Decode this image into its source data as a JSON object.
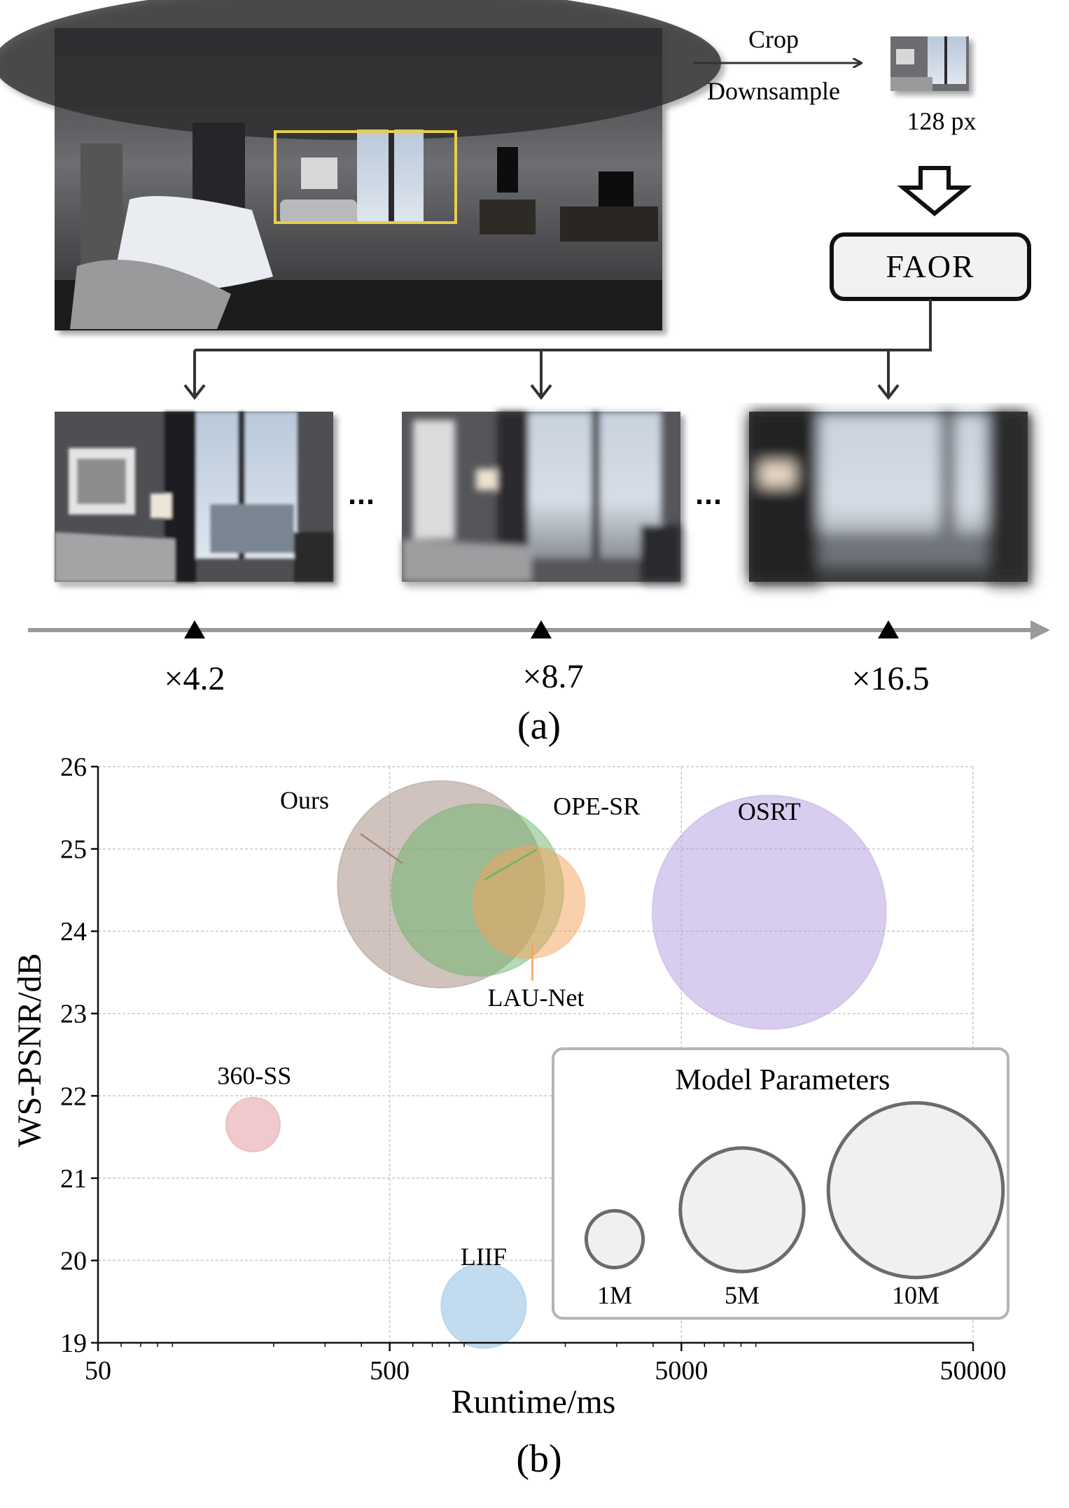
{
  "part_a": {
    "crop_label": "Crop",
    "downsample_label": "Downsample",
    "size_label": "128 px",
    "model_label": "FAOR",
    "ellipsis": "...",
    "scales": [
      "×4.2",
      "×8.7",
      "×16.5"
    ],
    "caption": "(a)"
  },
  "part_b": {
    "caption": "(b)",
    "legend_title": "Model Parameters",
    "legend_items": [
      {
        "label": "1M",
        "params_m": 1
      },
      {
        "label": "5M",
        "params_m": 5
      },
      {
        "label": "10M",
        "params_m": 10
      }
    ]
  },
  "chart_data": {
    "type": "scatter",
    "xlabel": "Runtime/ms",
    "ylabel": "WS-PSNR/dB",
    "xscale": "log",
    "xlim": [
      50,
      50000
    ],
    "ylim": [
      19,
      26
    ],
    "xticks": [
      50,
      500,
      5000,
      50000
    ],
    "xtick_labels": [
      "50",
      "500",
      "5000",
      "50000"
    ],
    "yticks": [
      19,
      20,
      21,
      22,
      23,
      24,
      25,
      26
    ],
    "ytick_labels": [
      "19",
      "20",
      "21",
      "22",
      "23",
      "24",
      "25",
      "26"
    ],
    "grid": true,
    "series": [
      {
        "name": "Ours",
        "x": 750,
        "y": 24.57,
        "params_m": 6.5,
        "color": "#a1867b"
      },
      {
        "name": "OPE-SR",
        "x": 1000,
        "y": 24.5,
        "params_m": 4.5,
        "color": "#6ab46a"
      },
      {
        "name": "LAU-Net",
        "x": 1500,
        "y": 24.35,
        "params_m": 1.9,
        "color": "#f6a25a"
      },
      {
        "name": "OSRT",
        "x": 10000,
        "y": 24.23,
        "params_m": 8.3,
        "color": "#b29be0"
      },
      {
        "name": "360-SS",
        "x": 170,
        "y": 21.65,
        "params_m": 0.45,
        "color": "#e0939a"
      },
      {
        "name": "LIIF",
        "x": 1050,
        "y": 19.45,
        "params_m": 1.1,
        "color": "#86b8e0"
      }
    ]
  }
}
